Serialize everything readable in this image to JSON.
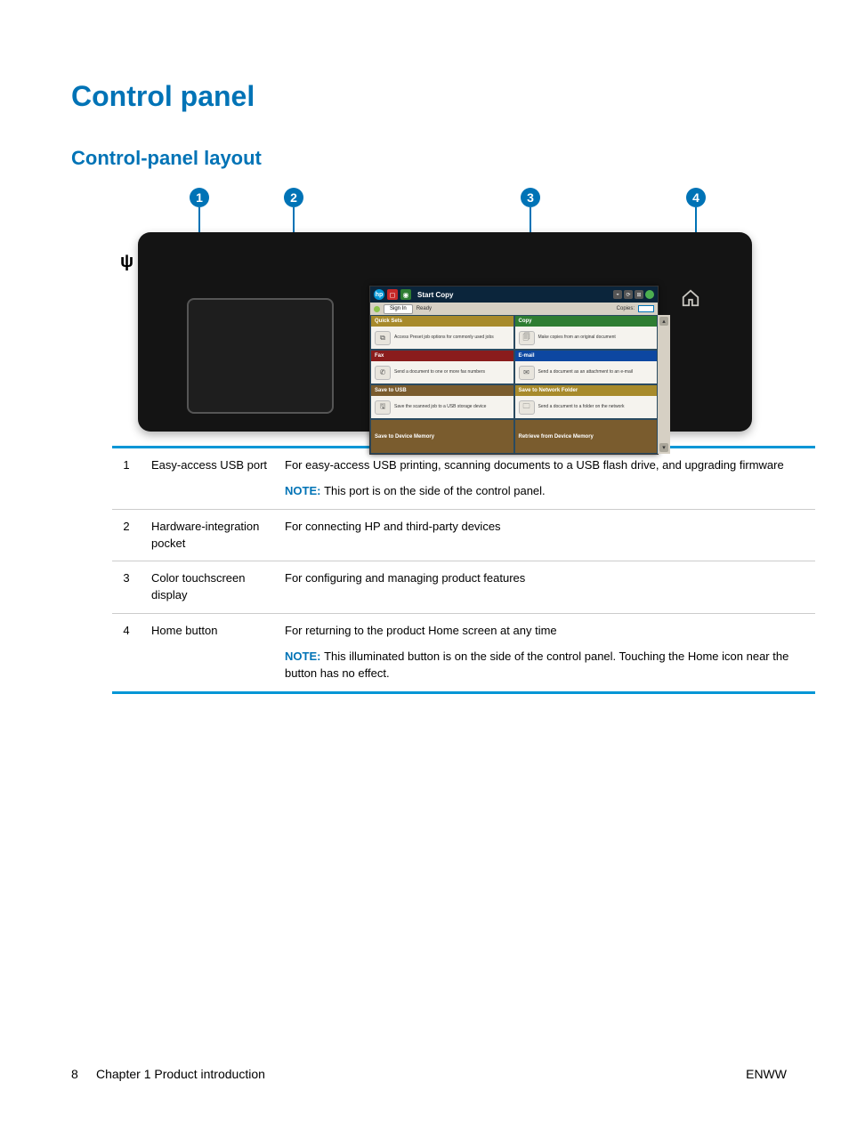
{
  "colors": {
    "accent": "#0073b6",
    "accent_light": "#0096d6",
    "tile_yellow": "#a78a2b",
    "tile_green": "#2e7d32",
    "tile_blue": "#0d47a1",
    "tile_red": "#8a1c1c",
    "tile_brown": "#7a5c2e",
    "panel_bg": "#141414",
    "screen_bg_top": "#15334a",
    "screen_bg_bottom": "#0f2740",
    "table_border": "#cccccc"
  },
  "title": "Control panel",
  "subtitle": "Control-panel layout",
  "callouts": [
    "1",
    "2",
    "3",
    "4"
  ],
  "screen": {
    "topbar": {
      "title": "Start Copy",
      "hp": "hp"
    },
    "signrow": {
      "signin": "Sign In",
      "ready": "Ready",
      "copies_label": "Copies:"
    },
    "tiles_left": [
      {
        "header_class": "th-yellow",
        "header": "Quick Sets",
        "icon": "⧉",
        "text": "Access Preset job options for commonly used jobs"
      },
      {
        "header_class": "th-red",
        "header": "Fax",
        "icon": "✆",
        "text": "Send a document to one or more fax numbers"
      },
      {
        "header_class": "th-brown",
        "header": "Save to USB",
        "icon": "🖫",
        "text": "Save the scanned job to a USB storage device"
      }
    ],
    "tiles_right": [
      {
        "header_class": "th-green",
        "header": "Copy",
        "icon": "🗐",
        "text": "Make copies from an original document"
      },
      {
        "header_class": "th-blue",
        "header": "E-mail",
        "icon": "✉",
        "text": "Send a document as an attachment to an e-mail"
      },
      {
        "header_class": "th-yellow",
        "header": "Save to Network Folder",
        "icon": "🗀",
        "text": "Send a document to a folder on the network"
      }
    ],
    "bottom_left": {
      "header_class": "th-brown",
      "header": "Save to Device Memory"
    },
    "bottom_right": {
      "header_class": "th-brown",
      "header": "Retrieve from Device Memory"
    }
  },
  "table": {
    "rows": [
      {
        "num": "1",
        "name": "Easy-access USB port",
        "desc": "For easy-access USB printing, scanning documents to a USB flash drive, and upgrading firmware",
        "note": "This port is on the side of the control panel."
      },
      {
        "num": "2",
        "name": "Hardware-integration pocket",
        "desc": "For connecting HP and third-party devices",
        "note": null
      },
      {
        "num": "3",
        "name": "Color touchscreen display",
        "desc": "For configuring and managing product features",
        "note": null
      },
      {
        "num": "4",
        "name": "Home button",
        "desc": "For returning to the product Home screen at any time",
        "note": "This illuminated button is on the side of the control panel. Touching the Home icon near the button has no effect."
      }
    ],
    "note_label": "NOTE:"
  },
  "footer": {
    "page": "8",
    "chapter": "Chapter 1   Product introduction",
    "lang": "ENWW"
  }
}
